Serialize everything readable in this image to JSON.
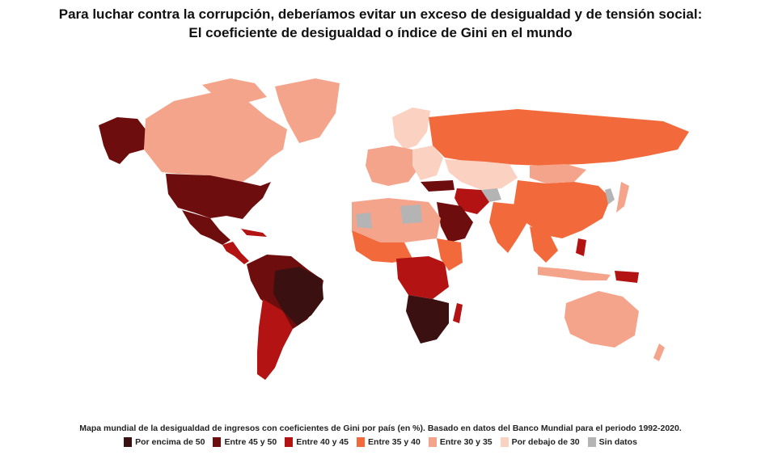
{
  "title": {
    "line1": "Para luchar contra la corrupción, deberíamos evitar un exceso de desigualdad y de tensión social:",
    "line2": "El coeficiente de desigualdad o índice de Gini en el mundo"
  },
  "caption": "Mapa mundial de la desigualdad de ingresos con coeficientes de Gini por país (en %). Basado en datos del Banco Mundial para el periodo 1992-2020.",
  "colors": {
    "above50": "#3a1010",
    "r45_50": "#6e0d0d",
    "r40_45": "#b31313",
    "r35_40": "#f26a3c",
    "r30_35": "#f5a48c",
    "below30": "#fbd1c2",
    "nodata": "#b4b4b4"
  },
  "legend": [
    {
      "label": "Por encima de 50",
      "color": "#3a1010"
    },
    {
      "label": "Entre 45 y 50",
      "color": "#6e0d0d"
    },
    {
      "label": "Entre 40 y 45",
      "color": "#b31313"
    },
    {
      "label": "Entre 35 y 40",
      "color": "#f26a3c"
    },
    {
      "label": "Entre 30 y 35",
      "color": "#f5a48c"
    },
    {
      "label": "Por debajo de 30",
      "color": "#fbd1c2"
    },
    {
      "label": "Sin datos",
      "color": "#b4b4b4"
    }
  ]
}
